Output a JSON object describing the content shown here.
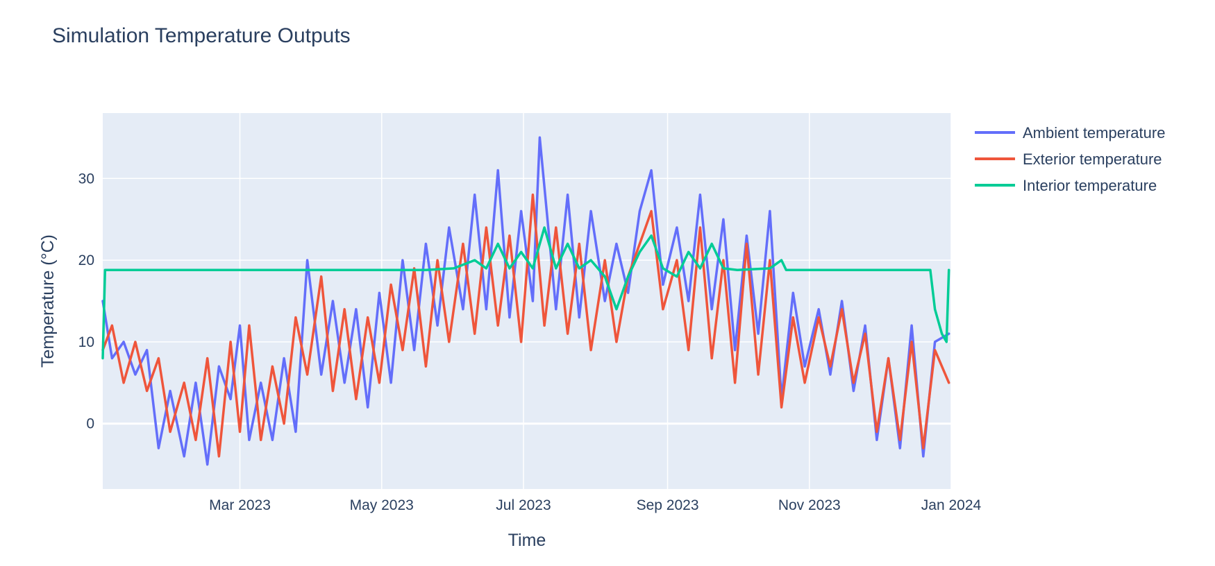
{
  "chart_data": {
    "type": "line",
    "title": "Simulation Temperature Outputs",
    "xlabel": "Time",
    "ylabel": "Temperature (°C)",
    "xlim": [
      "2023-01-01",
      "2024-01-01"
    ],
    "ylim": [
      -8,
      38
    ],
    "x_ticks": [
      {
        "date": "2023-03-01",
        "label": "Mar 2023"
      },
      {
        "date": "2023-05-01",
        "label": "May 2023"
      },
      {
        "date": "2023-07-01",
        "label": "Jul 2023"
      },
      {
        "date": "2023-09-01",
        "label": "Sep 2023"
      },
      {
        "date": "2023-11-01",
        "label": "Nov 2023"
      },
      {
        "date": "2024-01-01",
        "label": "Jan 2024"
      }
    ],
    "y_ticks": [
      0,
      10,
      20,
      30
    ],
    "grid": true,
    "legend": "top-right outside",
    "plot_background": "#e5ecf6",
    "series": [
      {
        "name": "Ambient temperature",
        "color": "#636efa",
        "points": [
          [
            "2023-01-01",
            15
          ],
          [
            "2023-01-05",
            8
          ],
          [
            "2023-01-10",
            10
          ],
          [
            "2023-01-15",
            6
          ],
          [
            "2023-01-20",
            9
          ],
          [
            "2023-01-25",
            -3
          ],
          [
            "2023-01-30",
            4
          ],
          [
            "2023-02-05",
            -4
          ],
          [
            "2023-02-10",
            5
          ],
          [
            "2023-02-15",
            -5
          ],
          [
            "2023-02-20",
            7
          ],
          [
            "2023-02-25",
            3
          ],
          [
            "2023-03-01",
            12
          ],
          [
            "2023-03-05",
            -2
          ],
          [
            "2023-03-10",
            5
          ],
          [
            "2023-03-15",
            -2
          ],
          [
            "2023-03-20",
            8
          ],
          [
            "2023-03-25",
            -1
          ],
          [
            "2023-03-30",
            20
          ],
          [
            "2023-04-05",
            6
          ],
          [
            "2023-04-10",
            15
          ],
          [
            "2023-04-15",
            5
          ],
          [
            "2023-04-20",
            14
          ],
          [
            "2023-04-25",
            2
          ],
          [
            "2023-04-30",
            16
          ],
          [
            "2023-05-05",
            5
          ],
          [
            "2023-05-10",
            20
          ],
          [
            "2023-05-15",
            9
          ],
          [
            "2023-05-20",
            22
          ],
          [
            "2023-05-25",
            12
          ],
          [
            "2023-05-30",
            24
          ],
          [
            "2023-06-05",
            14
          ],
          [
            "2023-06-10",
            28
          ],
          [
            "2023-06-15",
            14
          ],
          [
            "2023-06-20",
            31
          ],
          [
            "2023-06-25",
            13
          ],
          [
            "2023-06-30",
            26
          ],
          [
            "2023-07-05",
            15
          ],
          [
            "2023-07-08",
            35
          ],
          [
            "2023-07-15",
            14
          ],
          [
            "2023-07-20",
            28
          ],
          [
            "2023-07-25",
            13
          ],
          [
            "2023-07-30",
            26
          ],
          [
            "2023-08-05",
            15
          ],
          [
            "2023-08-10",
            22
          ],
          [
            "2023-08-15",
            16
          ],
          [
            "2023-08-20",
            26
          ],
          [
            "2023-08-25",
            31
          ],
          [
            "2023-08-30",
            17
          ],
          [
            "2023-09-05",
            24
          ],
          [
            "2023-09-10",
            15
          ],
          [
            "2023-09-15",
            28
          ],
          [
            "2023-09-20",
            14
          ],
          [
            "2023-09-25",
            25
          ],
          [
            "2023-09-30",
            9
          ],
          [
            "2023-10-05",
            23
          ],
          [
            "2023-10-10",
            11
          ],
          [
            "2023-10-15",
            26
          ],
          [
            "2023-10-20",
            3
          ],
          [
            "2023-10-25",
            16
          ],
          [
            "2023-10-30",
            7
          ],
          [
            "2023-11-05",
            14
          ],
          [
            "2023-11-10",
            6
          ],
          [
            "2023-11-15",
            15
          ],
          [
            "2023-11-20",
            4
          ],
          [
            "2023-11-25",
            12
          ],
          [
            "2023-11-30",
            -2
          ],
          [
            "2023-12-05",
            8
          ],
          [
            "2023-12-10",
            -3
          ],
          [
            "2023-12-15",
            12
          ],
          [
            "2023-12-20",
            -4
          ],
          [
            "2023-12-25",
            10
          ],
          [
            "2023-12-31",
            11
          ]
        ]
      },
      {
        "name": "Exterior temperature",
        "color": "#ef553b",
        "points": [
          [
            "2023-01-01",
            9
          ],
          [
            "2023-01-05",
            12
          ],
          [
            "2023-01-10",
            5
          ],
          [
            "2023-01-15",
            10
          ],
          [
            "2023-01-20",
            4
          ],
          [
            "2023-01-25",
            8
          ],
          [
            "2023-01-30",
            -1
          ],
          [
            "2023-02-05",
            5
          ],
          [
            "2023-02-10",
            -2
          ],
          [
            "2023-02-15",
            8
          ],
          [
            "2023-02-20",
            -4
          ],
          [
            "2023-02-25",
            10
          ],
          [
            "2023-03-01",
            -1
          ],
          [
            "2023-03-05",
            12
          ],
          [
            "2023-03-10",
            -2
          ],
          [
            "2023-03-15",
            7
          ],
          [
            "2023-03-20",
            0
          ],
          [
            "2023-03-25",
            13
          ],
          [
            "2023-03-30",
            6
          ],
          [
            "2023-04-05",
            18
          ],
          [
            "2023-04-10",
            4
          ],
          [
            "2023-04-15",
            14
          ],
          [
            "2023-04-20",
            3
          ],
          [
            "2023-04-25",
            13
          ],
          [
            "2023-04-30",
            5
          ],
          [
            "2023-05-05",
            17
          ],
          [
            "2023-05-10",
            9
          ],
          [
            "2023-05-15",
            19
          ],
          [
            "2023-05-20",
            7
          ],
          [
            "2023-05-25",
            20
          ],
          [
            "2023-05-30",
            10
          ],
          [
            "2023-06-05",
            22
          ],
          [
            "2023-06-10",
            11
          ],
          [
            "2023-06-15",
            24
          ],
          [
            "2023-06-20",
            12
          ],
          [
            "2023-06-25",
            23
          ],
          [
            "2023-06-30",
            10
          ],
          [
            "2023-07-05",
            28
          ],
          [
            "2023-07-10",
            12
          ],
          [
            "2023-07-15",
            24
          ],
          [
            "2023-07-20",
            11
          ],
          [
            "2023-07-25",
            22
          ],
          [
            "2023-07-30",
            9
          ],
          [
            "2023-08-05",
            20
          ],
          [
            "2023-08-10",
            10
          ],
          [
            "2023-08-15",
            18
          ],
          [
            "2023-08-20",
            22
          ],
          [
            "2023-08-25",
            26
          ],
          [
            "2023-08-30",
            14
          ],
          [
            "2023-09-05",
            20
          ],
          [
            "2023-09-10",
            9
          ],
          [
            "2023-09-15",
            24
          ],
          [
            "2023-09-20",
            8
          ],
          [
            "2023-09-25",
            20
          ],
          [
            "2023-09-30",
            5
          ],
          [
            "2023-10-05",
            22
          ],
          [
            "2023-10-10",
            6
          ],
          [
            "2023-10-15",
            20
          ],
          [
            "2023-10-20",
            2
          ],
          [
            "2023-10-25",
            13
          ],
          [
            "2023-10-30",
            5
          ],
          [
            "2023-11-05",
            13
          ],
          [
            "2023-11-10",
            7
          ],
          [
            "2023-11-15",
            14
          ],
          [
            "2023-11-20",
            5
          ],
          [
            "2023-11-25",
            11
          ],
          [
            "2023-11-30",
            -1
          ],
          [
            "2023-12-05",
            8
          ],
          [
            "2023-12-10",
            -2
          ],
          [
            "2023-12-15",
            10
          ],
          [
            "2023-12-20",
            -3
          ],
          [
            "2023-12-25",
            9
          ],
          [
            "2023-12-31",
            5
          ]
        ]
      },
      {
        "name": "Interior temperature",
        "color": "#00cc96",
        "points": [
          [
            "2023-01-01",
            8
          ],
          [
            "2023-01-02",
            18.8
          ],
          [
            "2023-01-15",
            18.8
          ],
          [
            "2023-02-01",
            18.8
          ],
          [
            "2023-03-01",
            18.8
          ],
          [
            "2023-04-01",
            18.8
          ],
          [
            "2023-05-01",
            18.8
          ],
          [
            "2023-05-20",
            18.8
          ],
          [
            "2023-06-01",
            19
          ],
          [
            "2023-06-10",
            20
          ],
          [
            "2023-06-15",
            19
          ],
          [
            "2023-06-20",
            22
          ],
          [
            "2023-06-25",
            19
          ],
          [
            "2023-06-30",
            21
          ],
          [
            "2023-07-05",
            19
          ],
          [
            "2023-07-10",
            24
          ],
          [
            "2023-07-15",
            19
          ],
          [
            "2023-07-20",
            22
          ],
          [
            "2023-07-25",
            19
          ],
          [
            "2023-07-30",
            20
          ],
          [
            "2023-08-05",
            18
          ],
          [
            "2023-08-10",
            14
          ],
          [
            "2023-08-15",
            18
          ],
          [
            "2023-08-20",
            21
          ],
          [
            "2023-08-25",
            23
          ],
          [
            "2023-08-30",
            19
          ],
          [
            "2023-09-05",
            18
          ],
          [
            "2023-09-10",
            21
          ],
          [
            "2023-09-15",
            19
          ],
          [
            "2023-09-20",
            22
          ],
          [
            "2023-09-25",
            19
          ],
          [
            "2023-10-01",
            18.8
          ],
          [
            "2023-10-15",
            19
          ],
          [
            "2023-10-20",
            20
          ],
          [
            "2023-10-22",
            18.8
          ],
          [
            "2023-11-01",
            18.8
          ],
          [
            "2023-12-01",
            18.8
          ],
          [
            "2023-12-23",
            18.8
          ],
          [
            "2023-12-25",
            14
          ],
          [
            "2023-12-28",
            11
          ],
          [
            "2023-12-30",
            10
          ],
          [
            "2023-12-31",
            18.8
          ]
        ]
      }
    ]
  }
}
